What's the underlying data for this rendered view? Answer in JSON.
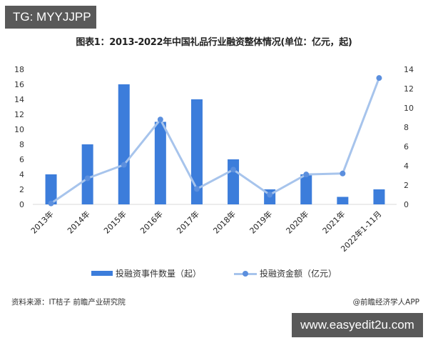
{
  "overlay": {
    "tg_label": "TG: MYYJJPP",
    "site_label": "www.easyedit2u.com"
  },
  "title": "图表1：2013-2022年中国礼品行业融资整体情况(单位：亿元，起)",
  "legend": {
    "bar_label": "投融资事件数量（起）",
    "line_label": "投融资金额（亿元）"
  },
  "footer": {
    "source": "资料来源：IT桔子 前瞻产业研究院",
    "credit": "@前瞻经济学人APP"
  },
  "colors": {
    "bar": "#3c7ddb",
    "line": "#a7c4ec",
    "marker": "#5b8fde"
  },
  "chart_data": {
    "type": "bar+line",
    "title": "图表1：2013-2022年中国礼品行业融资整体情况(单位：亿元，起)",
    "categories": [
      "2013年",
      "2014年",
      "2015年",
      "2016年",
      "2017年",
      "2018年",
      "2019年",
      "2020年",
      "2021年",
      "2022年1-11月"
    ],
    "series": [
      {
        "name": "投融资事件数量（起）",
        "type": "bar",
        "axis": "left",
        "values": [
          4,
          8,
          16,
          11,
          14,
          6,
          2,
          4,
          1,
          2
        ]
      },
      {
        "name": "投融资金额（亿元）",
        "type": "line",
        "axis": "right",
        "values": [
          0.1,
          2.7,
          4.1,
          8.8,
          1.6,
          3.6,
          1.0,
          3.1,
          3.2,
          13.1
        ]
      }
    ],
    "left_axis": {
      "ylim": [
        0,
        18
      ],
      "ticks": [
        0,
        2,
        4,
        6,
        8,
        10,
        12,
        14,
        16,
        18
      ]
    },
    "right_axis": {
      "ylim": [
        0,
        14
      ],
      "ticks": [
        0,
        2,
        4,
        6,
        8,
        10,
        12,
        14
      ]
    },
    "grid": false,
    "legend_position": "bottom"
  }
}
